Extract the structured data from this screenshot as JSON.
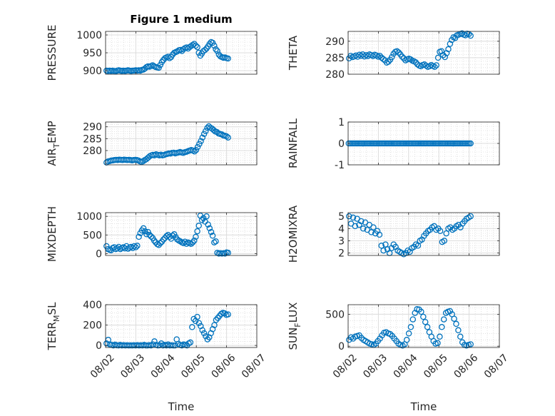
{
  "figure": {
    "title": "Figure 1 medium"
  },
  "style": {
    "marker_color": "#0072BD",
    "axis_color": "#262626",
    "grid_color": "#b0b0b0"
  },
  "chart_data": [
    {
      "type": "scatter",
      "ylabel": "PRESSURE",
      "ylim": [
        890,
        1010
      ],
      "yticks": [
        900,
        950,
        1000
      ],
      "yticklabels": [
        "900",
        "950",
        "1000"
      ],
      "xlim": [
        0,
        5
      ],
      "xticks": [
        0,
        1,
        2,
        3,
        4,
        5
      ],
      "show_xticklabels": false,
      "grid": true,
      "minor_grid": true,
      "y": [
        900,
        899,
        900,
        899,
        900,
        899,
        898,
        900,
        901,
        900,
        899,
        900,
        899,
        900,
        901,
        900,
        899,
        900,
        900,
        901,
        900,
        901,
        900,
        902,
        903,
        906,
        910,
        912,
        911,
        913,
        915,
        912,
        910,
        909,
        908,
        916,
        924,
        930,
        935,
        937,
        939,
        935,
        938,
        945,
        950,
        952,
        954,
        957,
        958,
        955,
        960,
        963,
        965,
        962,
        966,
        969,
        972,
        975,
        970,
        966,
        950,
        942,
        948,
        955,
        958,
        962,
        968,
        975,
        980,
        978,
        970,
        960,
        955,
        945,
        940,
        938,
        936,
        937,
        935,
        934
      ]
    },
    {
      "type": "scatter",
      "ylabel": "THETA",
      "ylim": [
        280,
        293
      ],
      "yticks": [
        280,
        285,
        290
      ],
      "yticklabels": [
        "280",
        "285",
        "290"
      ],
      "xlim": [
        0,
        5
      ],
      "xticks": [
        0,
        1,
        2,
        3,
        4,
        5
      ],
      "show_xticklabels": false,
      "grid": true,
      "minor_grid": true,
      "y": [
        284.8,
        285.6,
        285.2,
        285.4,
        285.7,
        285.3,
        285.9,
        285.6,
        286.0,
        285.4,
        285.8,
        285.5,
        286.0,
        285.8,
        285.5,
        285.9,
        285.7,
        285.3,
        285.6,
        285.0,
        284.6,
        284.2,
        283.5,
        283.8,
        284.4,
        285.2,
        286.2,
        286.8,
        287.0,
        286.6,
        286.0,
        285.3,
        284.8,
        284.2,
        284.5,
        284.7,
        284.5,
        284.1,
        283.9,
        283.6,
        283.0,
        282.6,
        282.4,
        282.8,
        283.0,
        282.6,
        282.2,
        282.4,
        282.8,
        282.5,
        282.2,
        282.7,
        285.0,
        286.8,
        287.0,
        285.8,
        285.2,
        286.4,
        287.6,
        289.2,
        290.4,
        291.2,
        291.0,
        291.8,
        292.0,
        292.2,
        292.4,
        292.0,
        291.8,
        292.3,
        292.2,
        291.7
      ]
    },
    {
      "type": "scatter",
      "ylabel": "AIR_TEMP",
      "ylabel_parts": [
        "AIR",
        "T",
        "EMP"
      ],
      "ylim": [
        274,
        292
      ],
      "yticks": [
        280,
        285,
        290
      ],
      "yticklabels": [
        "280",
        "285",
        "290"
      ],
      "xlim": [
        0,
        5
      ],
      "xticks": [
        0,
        1,
        2,
        3,
        4,
        5
      ],
      "show_xticklabels": false,
      "grid": true,
      "minor_grid": true,
      "y": [
        275.0,
        275.4,
        275.6,
        275.8,
        275.9,
        276.0,
        276.1,
        276.0,
        276.2,
        276.1,
        276.0,
        276.2,
        276.1,
        276.0,
        276.1,
        276.0,
        275.9,
        276.0,
        276.1,
        276.0,
        275.8,
        275.4,
        275.2,
        275.6,
        276.0,
        276.4,
        277.0,
        277.6,
        278.0,
        278.2,
        278.0,
        278.4,
        278.2,
        278.0,
        278.3,
        278.0,
        278.1,
        278.4,
        278.6,
        278.8,
        278.7,
        279.0,
        279.1,
        278.8,
        279.0,
        279.2,
        279.4,
        279.2,
        279.0,
        279.3,
        279.5,
        279.8,
        280.0,
        280.2,
        280.0,
        279.6,
        280.2,
        281.5,
        282.8,
        284.0,
        285.5,
        287.0,
        288.2,
        289.5,
        290.2,
        289.6,
        289.2,
        288.6,
        288.0,
        287.8,
        287.2,
        287.0,
        286.8,
        286.4,
        286.2,
        286.0,
        285.5
      ]
    },
    {
      "type": "scatter",
      "ylabel": "RAINFALL",
      "ylim": [
        -1,
        1
      ],
      "yticks": [
        -1,
        0,
        1
      ],
      "yticklabels": [
        "-1",
        "0",
        "1"
      ],
      "xlim": [
        0,
        5
      ],
      "xticks": [
        0,
        1,
        2,
        3,
        4,
        5
      ],
      "show_xticklabels": false,
      "grid": true,
      "minor_grid": true,
      "x_start": 0.02,
      "x_end": 4.05,
      "constant_y": 0,
      "n_points": 82
    },
    {
      "type": "scatter",
      "ylabel": "MIXDEPTH",
      "ylim": [
        -50,
        1100
      ],
      "yticks": [
        0,
        500,
        1000
      ],
      "yticklabels": [
        "0",
        "500",
        "1000"
      ],
      "xlim": [
        0,
        5
      ],
      "xticks": [
        0,
        1,
        2,
        3,
        4,
        5
      ],
      "show_xticklabels": false,
      "grid": true,
      "minor_grid": true,
      "y": [
        200,
        120,
        100,
        90,
        150,
        170,
        120,
        140,
        180,
        120,
        150,
        170,
        140,
        200,
        130,
        160,
        180,
        150,
        200,
        170,
        210,
        450,
        550,
        620,
        680,
        600,
        520,
        580,
        500,
        460,
        420,
        350,
        300,
        250,
        230,
        280,
        320,
        380,
        420,
        470,
        500,
        450,
        400,
        480,
        520,
        440,
        380,
        350,
        330,
        300,
        280,
        320,
        260,
        300,
        280,
        260,
        300,
        350,
        450,
        600,
        750,
        1020,
        900,
        950,
        860,
        1000,
        780,
        680,
        580,
        480,
        300,
        330,
        20,
        0,
        10,
        0,
        10,
        0,
        30,
        20
      ]
    },
    {
      "type": "scatter",
      "ylabel": "H2OMIXRA",
      "ylim": [
        1.8,
        5.3
      ],
      "yticks": [
        2,
        3,
        4,
        5
      ],
      "yticklabels": [
        "2",
        "3",
        "4",
        "5"
      ],
      "xlim": [
        0,
        5
      ],
      "xticks": [
        0,
        1,
        2,
        3,
        4,
        5
      ],
      "show_xticklabels": false,
      "grid": true,
      "minor_grid": true,
      "y": [
        5.0,
        4.4,
        4.9,
        4.2,
        4.8,
        4.3,
        4.6,
        4.0,
        4.5,
        3.9,
        4.3,
        3.7,
        4.1,
        3.6,
        3.8,
        3.5,
        2.6,
        2.2,
        2.7,
        2.3,
        2.0,
        2.4,
        2.7,
        2.5,
        2.2,
        2.1,
        2.0,
        1.9,
        2.0,
        2.2,
        2.1,
        2.4,
        2.5,
        2.7,
        2.6,
        3.0,
        3.1,
        3.4,
        3.6,
        3.8,
        3.9,
        4.1,
        4.2,
        3.9,
        4.0,
        3.8,
        2.9,
        3.0,
        3.6,
        4.0,
        4.1,
        3.9,
        4.0,
        4.2,
        4.3,
        4.1,
        4.4,
        4.6,
        4.8,
        4.9,
        5.0
      ]
    },
    {
      "type": "scatter",
      "ylabel": "TERR_MSL",
      "ylabel_parts": [
        "TERR",
        "M",
        "SL"
      ],
      "ylim": [
        -20,
        400
      ],
      "yticks": [
        0,
        200,
        400
      ],
      "yticklabels": [
        "0",
        "200",
        "400"
      ],
      "xlim": [
        0,
        5
      ],
      "xticks": [
        0,
        1,
        2,
        3,
        4,
        5
      ],
      "xticklabels": [
        "08/02",
        "08/03",
        "08/04",
        "08/05",
        "08/06",
        "08/07"
      ],
      "xlabel": "Time",
      "show_xticklabels": true,
      "grid": true,
      "minor_grid": true,
      "y": [
        20,
        55,
        10,
        5,
        0,
        8,
        2,
        0,
        5,
        0,
        3,
        0,
        2,
        0,
        1,
        0,
        2,
        0,
        3,
        0,
        2,
        0,
        5,
        0,
        0,
        3,
        0,
        10,
        40,
        5,
        0,
        2,
        20,
        0,
        5,
        0,
        10,
        0,
        2,
        0,
        0,
        60,
        15,
        5,
        0,
        10,
        5,
        0,
        20,
        30,
        180,
        260,
        240,
        280,
        220,
        190,
        150,
        120,
        90,
        60,
        80,
        120,
        160,
        200,
        250,
        270,
        290,
        310,
        320,
        315,
        300,
        305
      ]
    },
    {
      "type": "scatter",
      "ylabel": "SUN_FLUX",
      "ylabel_parts": [
        "SUN",
        "F",
        "LUX"
      ],
      "ylim": [
        -20,
        650
      ],
      "yticks": [
        0,
        500
      ],
      "yticklabels": [
        "0",
        "500"
      ],
      "xlim": [
        0,
        5
      ],
      "xticks": [
        0,
        1,
        2,
        3,
        4,
        5
      ],
      "xticklabels": [
        "08/02",
        "08/03",
        "08/04",
        "08/05",
        "08/06",
        "08/07"
      ],
      "xlabel": "Time",
      "show_xticklabels": true,
      "grid": true,
      "minor_grid": true,
      "y": [
        100,
        140,
        120,
        150,
        160,
        170,
        130,
        100,
        80,
        60,
        40,
        30,
        20,
        40,
        80,
        120,
        170,
        210,
        220,
        200,
        190,
        160,
        120,
        80,
        40,
        20,
        10,
        30,
        100,
        200,
        300,
        420,
        520,
        580,
        575,
        540,
        460,
        380,
        300,
        220,
        150,
        80,
        40,
        50,
        150,
        300,
        420,
        520,
        540,
        550,
        500,
        430,
        350,
        250,
        150,
        60,
        20,
        10,
        20,
        30
      ]
    }
  ]
}
